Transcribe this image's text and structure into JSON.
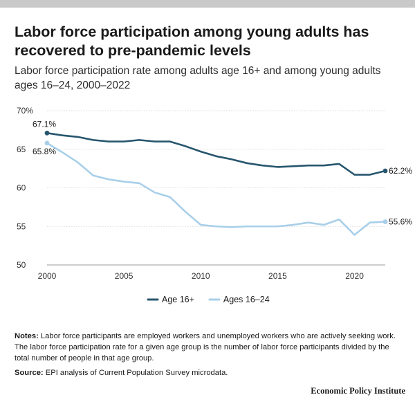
{
  "title": "Labor force participation among young adults has recovered to pre-pandemic levels",
  "subtitle": "Labor force participation rate among adults age 16+ and among young adults ages 16–24, 2000–2022",
  "notes_label": "Notes:",
  "notes_text": " Labor force participants are employed workers and unemployed workers who are actively seeking work. The labor force participation rate for a given age group is the number of labor force participants divided by the total number of people in that age group.",
  "source_label": "Source:",
  "source_text": " EPI analysis of Current Population Survey microdata.",
  "footer": "Economic Policy Institute",
  "chart_data": {
    "type": "line",
    "title": "",
    "xlabel": "",
    "ylabel": "",
    "xlim": [
      2000,
      2022
    ],
    "ylim": [
      50,
      70
    ],
    "x_ticks": [
      2000,
      2005,
      2010,
      2015,
      2020
    ],
    "y_ticks": [
      50,
      55,
      60,
      65,
      70
    ],
    "y_tick_labels": [
      "50",
      "55",
      "60",
      "65",
      "70%"
    ],
    "grid": true,
    "legend_position": "bottom-center",
    "x": [
      2000,
      2001,
      2002,
      2003,
      2004,
      2005,
      2006,
      2007,
      2008,
      2009,
      2010,
      2011,
      2012,
      2013,
      2014,
      2015,
      2016,
      2017,
      2018,
      2019,
      2020,
      2021,
      2022
    ],
    "series": [
      {
        "name": "Age 16+",
        "color": "#27566e",
        "values": [
          67.1,
          66.8,
          66.6,
          66.2,
          66.0,
          66.0,
          66.2,
          66.0,
          66.0,
          65.4,
          64.7,
          64.1,
          63.7,
          63.2,
          62.9,
          62.7,
          62.8,
          62.9,
          62.9,
          63.1,
          61.7,
          61.7,
          62.2
        ],
        "start_label": "67.1%",
        "end_label": "62.2%"
      },
      {
        "name": "Ages 16–24",
        "color": "#a8cfe9",
        "values": [
          65.8,
          64.6,
          63.3,
          61.6,
          61.1,
          60.8,
          60.6,
          59.4,
          58.8,
          56.9,
          55.2,
          55.0,
          54.9,
          55.0,
          55.0,
          55.0,
          55.2,
          55.5,
          55.2,
          55.9,
          53.9,
          55.5,
          55.6
        ],
        "start_label": "65.8%",
        "end_label": "55.6%"
      }
    ]
  }
}
